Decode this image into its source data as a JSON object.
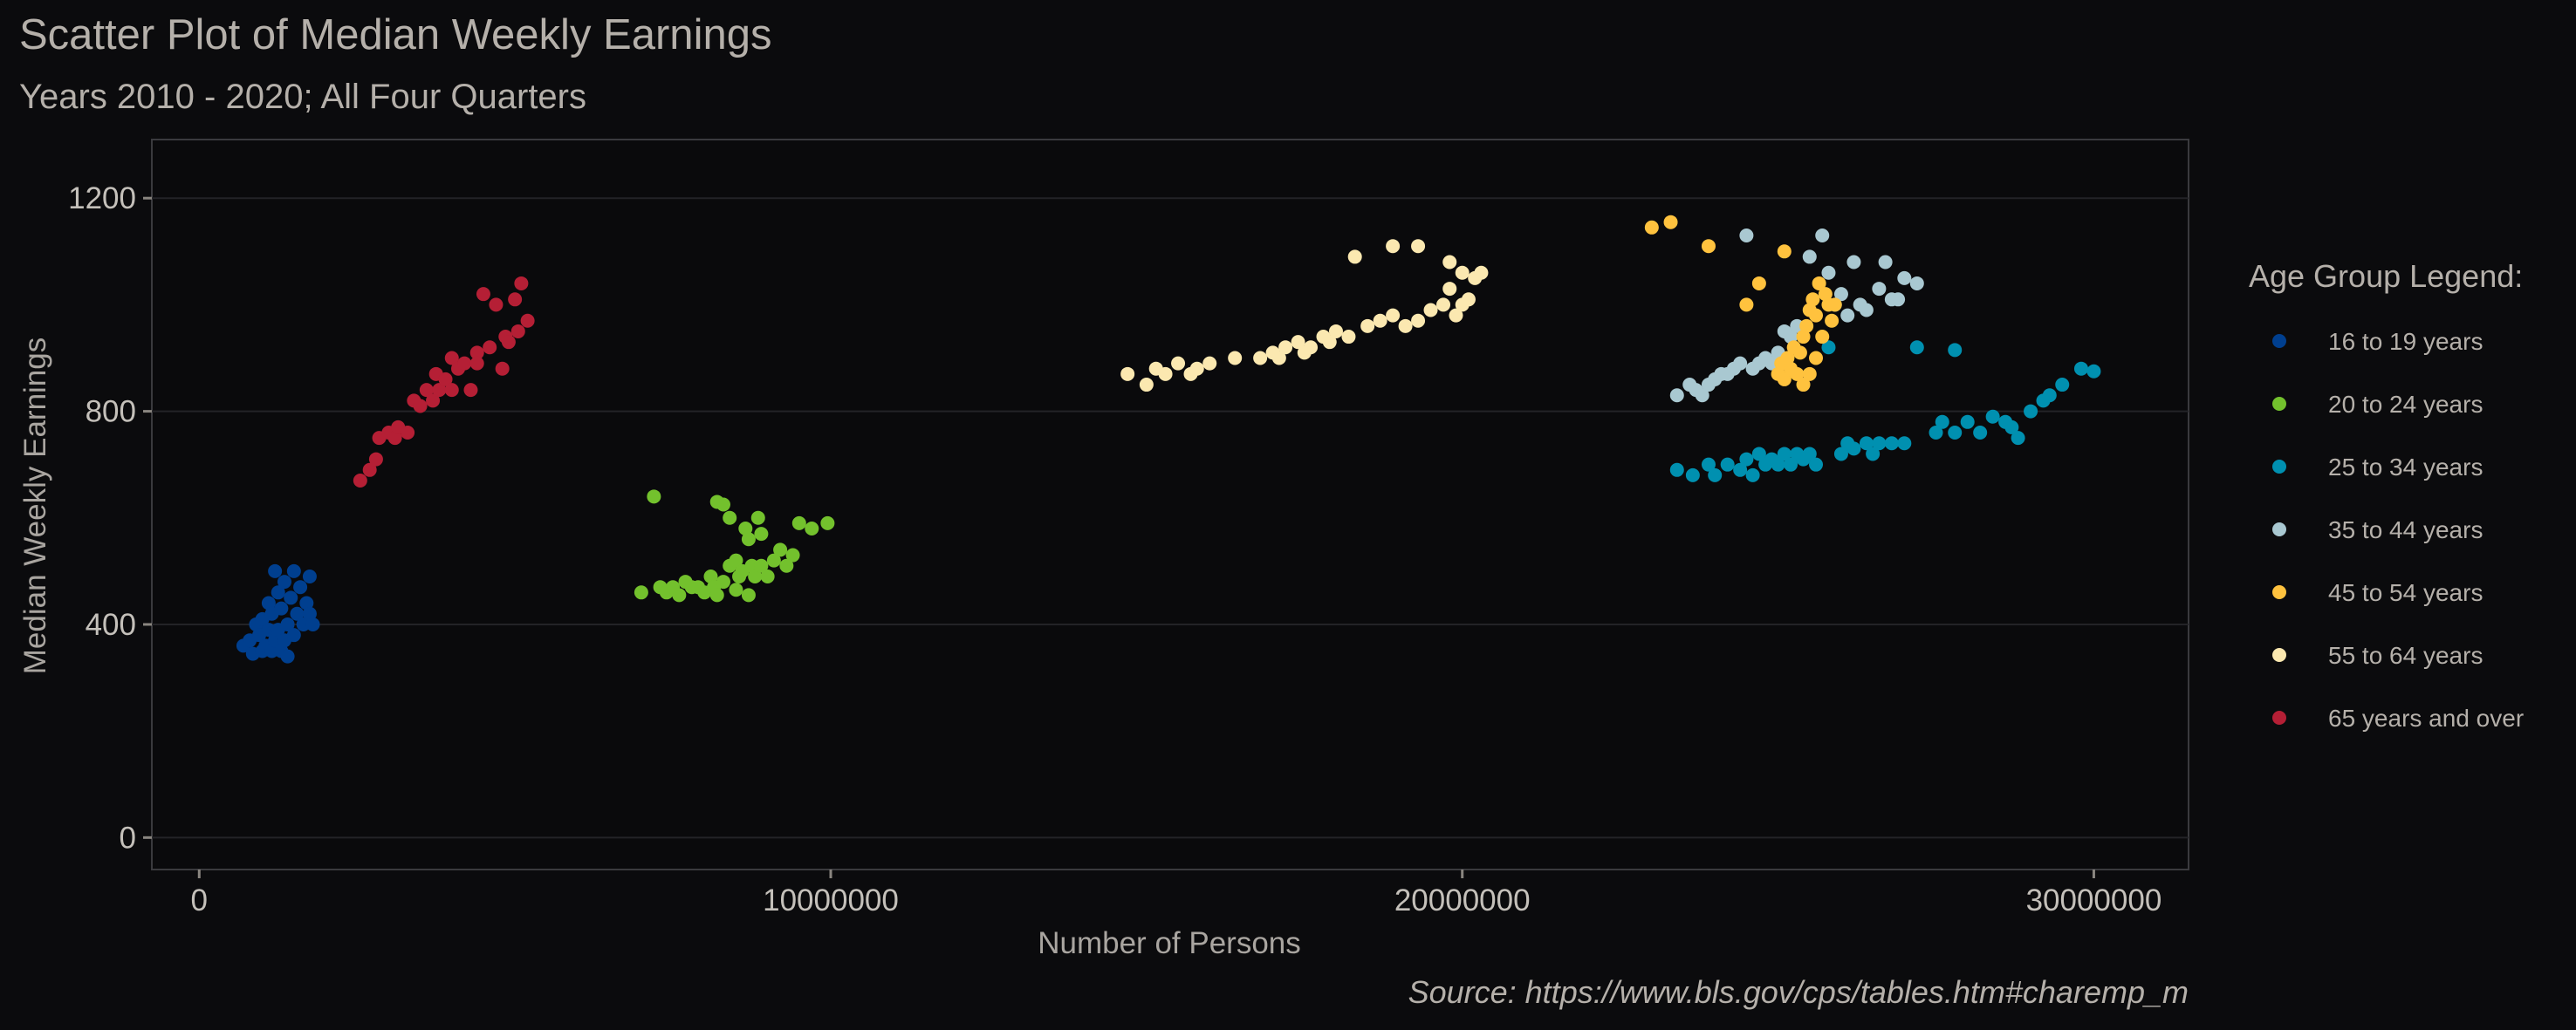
{
  "chart_data": {
    "type": "scatter",
    "title": "Scatter Plot of Median Weekly Earnings",
    "subtitle": "Years 2010 - 2020; All  Four Quarters",
    "xlabel": "Number of Persons",
    "ylabel": "Median Weekly Earnings",
    "caption": "Source: https://www.bls.gov/cps/tables.htm#charemp_m",
    "xlim": [
      -750000,
      31500000
    ],
    "ylim": [
      -60,
      1310
    ],
    "x_ticks": [
      0,
      10000000,
      20000000,
      30000000
    ],
    "x_tick_labels": [
      "0",
      "10000000",
      "20000000",
      "30000000"
    ],
    "y_ticks": [
      0,
      400,
      800,
      1200
    ],
    "y_tick_labels": [
      "0",
      "400",
      "800",
      "1200"
    ],
    "grid": true,
    "legend": {
      "title": "Age Group Legend:",
      "placement": "right"
    },
    "series": [
      {
        "name": "16 to 19 years",
        "color": "#003f8f",
        "points": [
          [
            700000,
            360
          ],
          [
            800000,
            370
          ],
          [
            850000,
            345
          ],
          [
            900000,
            400
          ],
          [
            950000,
            380
          ],
          [
            1000000,
            350
          ],
          [
            1000000,
            410
          ],
          [
            1050000,
            360
          ],
          [
            1100000,
            390
          ],
          [
            1100000,
            440
          ],
          [
            1150000,
            350
          ],
          [
            1150000,
            420
          ],
          [
            1200000,
            370
          ],
          [
            1200000,
            500
          ],
          [
            1250000,
            460
          ],
          [
            1250000,
            390
          ],
          [
            1300000,
            350
          ],
          [
            1300000,
            430
          ],
          [
            1350000,
            370
          ],
          [
            1350000,
            480
          ],
          [
            1400000,
            400
          ],
          [
            1400000,
            340
          ],
          [
            1450000,
            450
          ],
          [
            1500000,
            380
          ],
          [
            1500000,
            500
          ],
          [
            1550000,
            420
          ],
          [
            1600000,
            470
          ],
          [
            1650000,
            400
          ],
          [
            1700000,
            440
          ],
          [
            1750000,
            420
          ],
          [
            1750000,
            490
          ],
          [
            1800000,
            400
          ]
        ]
      },
      {
        "name": "20 to 24 years",
        "color": "#73c12d",
        "points": [
          [
            7000000,
            460
          ],
          [
            7200000,
            640
          ],
          [
            7300000,
            470
          ],
          [
            7400000,
            460
          ],
          [
            7500000,
            470
          ],
          [
            7600000,
            455
          ],
          [
            7700000,
            480
          ],
          [
            7800000,
            470
          ],
          [
            7900000,
            470
          ],
          [
            8000000,
            460
          ],
          [
            8100000,
            490
          ],
          [
            8150000,
            470
          ],
          [
            8200000,
            630
          ],
          [
            8200000,
            455
          ],
          [
            8300000,
            480
          ],
          [
            8300000,
            625
          ],
          [
            8400000,
            510
          ],
          [
            8400000,
            600
          ],
          [
            8500000,
            465
          ],
          [
            8500000,
            520
          ],
          [
            8550000,
            490
          ],
          [
            8600000,
            500
          ],
          [
            8650000,
            580
          ],
          [
            8700000,
            455
          ],
          [
            8700000,
            560
          ],
          [
            8750000,
            510
          ],
          [
            8800000,
            490
          ],
          [
            8850000,
            600
          ],
          [
            8900000,
            570
          ],
          [
            8900000,
            510
          ],
          [
            9000000,
            490
          ],
          [
            9100000,
            520
          ],
          [
            9200000,
            540
          ],
          [
            9300000,
            510
          ],
          [
            9400000,
            530
          ],
          [
            9500000,
            590
          ],
          [
            9700000,
            580
          ],
          [
            9950000,
            590
          ]
        ]
      },
      {
        "name": "25 to 34 years",
        "color": "#0090b0",
        "points": [
          [
            23400000,
            690
          ],
          [
            23650000,
            680
          ],
          [
            23900000,
            700
          ],
          [
            24000000,
            680
          ],
          [
            24200000,
            700
          ],
          [
            24400000,
            690
          ],
          [
            24500000,
            710
          ],
          [
            24600000,
            680
          ],
          [
            24700000,
            720
          ],
          [
            24800000,
            700
          ],
          [
            24900000,
            710
          ],
          [
            25000000,
            700
          ],
          [
            25100000,
            720
          ],
          [
            25200000,
            700
          ],
          [
            25300000,
            720
          ],
          [
            25400000,
            710
          ],
          [
            25500000,
            720
          ],
          [
            25600000,
            700
          ],
          [
            25800000,
            920
          ],
          [
            26000000,
            720
          ],
          [
            26100000,
            740
          ],
          [
            26200000,
            730
          ],
          [
            26400000,
            740
          ],
          [
            26500000,
            720
          ],
          [
            26600000,
            740
          ],
          [
            26800000,
            740
          ],
          [
            27000000,
            740
          ],
          [
            27200000,
            920
          ],
          [
            27500000,
            760
          ],
          [
            27600000,
            780
          ],
          [
            27800000,
            760
          ],
          [
            28000000,
            780
          ],
          [
            28200000,
            760
          ],
          [
            28400000,
            790
          ],
          [
            28600000,
            780
          ],
          [
            28700000,
            770
          ],
          [
            28800000,
            750
          ],
          [
            29000000,
            800
          ],
          [
            29200000,
            820
          ],
          [
            29300000,
            830
          ],
          [
            29500000,
            850
          ],
          [
            29800000,
            880
          ],
          [
            30000000,
            875
          ],
          [
            27800000,
            915
          ]
        ]
      },
      {
        "name": "35 to 44 years",
        "color": "#a9c8d1",
        "points": [
          [
            23400000,
            830
          ],
          [
            23600000,
            850
          ],
          [
            23700000,
            840
          ],
          [
            23800000,
            830
          ],
          [
            23900000,
            850
          ],
          [
            24000000,
            860
          ],
          [
            24100000,
            870
          ],
          [
            24200000,
            870
          ],
          [
            24300000,
            880
          ],
          [
            24400000,
            890
          ],
          [
            24500000,
            1130
          ],
          [
            24600000,
            880
          ],
          [
            24700000,
            890
          ],
          [
            24800000,
            900
          ],
          [
            24900000,
            890
          ],
          [
            25000000,
            910
          ],
          [
            25100000,
            950
          ],
          [
            25200000,
            940
          ],
          [
            25300000,
            960
          ],
          [
            25500000,
            1090
          ],
          [
            25700000,
            1130
          ],
          [
            25800000,
            1060
          ],
          [
            25900000,
            1000
          ],
          [
            26000000,
            1020
          ],
          [
            26100000,
            980
          ],
          [
            26200000,
            1080
          ],
          [
            26300000,
            1000
          ],
          [
            26400000,
            990
          ],
          [
            26600000,
            1030
          ],
          [
            26700000,
            1080
          ],
          [
            26800000,
            1010
          ],
          [
            27000000,
            1050
          ],
          [
            27200000,
            1040
          ],
          [
            26900000,
            1010
          ]
        ]
      },
      {
        "name": "45 to 54 years",
        "color": "#ffc23e",
        "points": [
          [
            23000000,
            1145
          ],
          [
            23300000,
            1155
          ],
          [
            23900000,
            1110
          ],
          [
            24500000,
            1000
          ],
          [
            24700000,
            1040
          ],
          [
            25000000,
            870
          ],
          [
            25050000,
            890
          ],
          [
            25100000,
            860
          ],
          [
            25150000,
            900
          ],
          [
            25200000,
            880
          ],
          [
            25250000,
            920
          ],
          [
            25300000,
            870
          ],
          [
            25350000,
            910
          ],
          [
            25400000,
            940
          ],
          [
            25450000,
            960
          ],
          [
            25500000,
            870
          ],
          [
            25500000,
            990
          ],
          [
            25550000,
            1010
          ],
          [
            25600000,
            980
          ],
          [
            25650000,
            1040
          ],
          [
            25700000,
            940
          ],
          [
            25750000,
            1020
          ],
          [
            25800000,
            1000
          ],
          [
            25850000,
            970
          ],
          [
            25900000,
            1000
          ],
          [
            25100000,
            1100
          ],
          [
            25400000,
            850
          ],
          [
            25600000,
            900
          ]
        ]
      },
      {
        "name": "55 to 64 years",
        "color": "#fbe8b0",
        "points": [
          [
            14700000,
            870
          ],
          [
            15000000,
            850
          ],
          [
            15150000,
            880
          ],
          [
            15300000,
            870
          ],
          [
            15500000,
            890
          ],
          [
            15700000,
            870
          ],
          [
            15800000,
            880
          ],
          [
            16000000,
            890
          ],
          [
            16400000,
            900
          ],
          [
            16800000,
            900
          ],
          [
            17000000,
            910
          ],
          [
            17100000,
            900
          ],
          [
            17200000,
            920
          ],
          [
            17400000,
            930
          ],
          [
            17500000,
            910
          ],
          [
            17600000,
            920
          ],
          [
            17800000,
            940
          ],
          [
            17900000,
            930
          ],
          [
            18000000,
            950
          ],
          [
            18200000,
            940
          ],
          [
            18300000,
            1090
          ],
          [
            18500000,
            960
          ],
          [
            18700000,
            970
          ],
          [
            18900000,
            980
          ],
          [
            19100000,
            960
          ],
          [
            19300000,
            970
          ],
          [
            19500000,
            990
          ],
          [
            19700000,
            1000
          ],
          [
            19900000,
            980
          ],
          [
            20000000,
            1000
          ],
          [
            20100000,
            1010
          ],
          [
            20200000,
            1050
          ],
          [
            20300000,
            1060
          ],
          [
            19800000,
            1030
          ],
          [
            18900000,
            1110
          ],
          [
            19300000,
            1110
          ],
          [
            19800000,
            1080
          ],
          [
            20000000,
            1060
          ]
        ]
      },
      {
        "name": "65 years and over",
        "color": "#b51f35",
        "points": [
          [
            2550000,
            670
          ],
          [
            2700000,
            690
          ],
          [
            2800000,
            710
          ],
          [
            2850000,
            750
          ],
          [
            3000000,
            760
          ],
          [
            3100000,
            750
          ],
          [
            3150000,
            770
          ],
          [
            3300000,
            760
          ],
          [
            3400000,
            820
          ],
          [
            3500000,
            810
          ],
          [
            3600000,
            840
          ],
          [
            3700000,
            820
          ],
          [
            3750000,
            870
          ],
          [
            3800000,
            840
          ],
          [
            3900000,
            860
          ],
          [
            4000000,
            900
          ],
          [
            4100000,
            880
          ],
          [
            4200000,
            890
          ],
          [
            4300000,
            840
          ],
          [
            4400000,
            910
          ],
          [
            4500000,
            1020
          ],
          [
            4600000,
            920
          ],
          [
            4700000,
            1000
          ],
          [
            4800000,
            880
          ],
          [
            4850000,
            940
          ],
          [
            4900000,
            930
          ],
          [
            5000000,
            1010
          ],
          [
            5050000,
            950
          ],
          [
            5100000,
            1040
          ],
          [
            5200000,
            970
          ],
          [
            4000000,
            840
          ],
          [
            4400000,
            890
          ]
        ]
      }
    ]
  }
}
